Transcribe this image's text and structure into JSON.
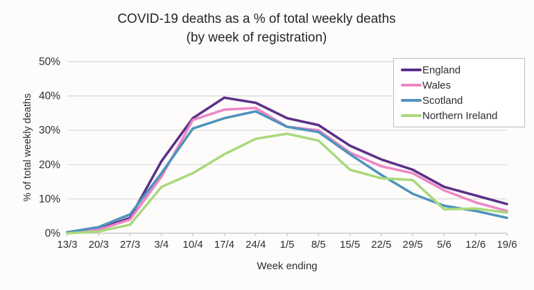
{
  "chart_data": {
    "type": "line",
    "title": "COVID-19 deaths as a % of total weekly deaths",
    "subtitle": "(by week of registration)",
    "xlabel": "Week ending",
    "ylabel": "% of total weekly deaths",
    "ylim": [
      0,
      50
    ],
    "ytick_labels": [
      "0%",
      "10%",
      "20%",
      "30%",
      "40%",
      "50%"
    ],
    "grid": true,
    "legend_position": "top-right",
    "categories": [
      "13/3",
      "20/3",
      "27/3",
      "3/4",
      "10/4",
      "17/4",
      "24/4",
      "1/5",
      "8/5",
      "15/5",
      "22/5",
      "29/5",
      "5/6",
      "12/6",
      "19/6"
    ],
    "series": [
      {
        "name": "England",
        "color": "#5b3089",
        "values": [
          0.3,
          1.2,
          4.5,
          21.0,
          33.5,
          39.5,
          38.0,
          33.5,
          31.5,
          25.5,
          21.5,
          18.5,
          13.5,
          11.0,
          8.5
        ]
      },
      {
        "name": "Wales",
        "color": "#ec87c5",
        "values": [
          0.2,
          1.0,
          4.0,
          16.5,
          33.0,
          36.0,
          36.5,
          31.0,
          30.0,
          23.5,
          19.5,
          17.5,
          12.5,
          9.0,
          6.5
        ]
      },
      {
        "name": "Scotland",
        "color": "#4f93bb",
        "values": [
          0.3,
          1.8,
          5.5,
          17.5,
          30.5,
          33.5,
          35.5,
          31.0,
          29.5,
          23.0,
          17.0,
          11.5,
          8.0,
          6.5,
          4.5
        ]
      },
      {
        "name": "Northern Ireland",
        "color": "#a9d97c",
        "values": [
          0.0,
          0.5,
          2.5,
          13.5,
          17.5,
          23.0,
          27.5,
          29.0,
          27.0,
          18.5,
          16.0,
          15.5,
          7.0,
          7.2,
          6.0
        ]
      }
    ]
  },
  "style": {
    "gridline_color": "#d8d8d8",
    "axis_color": "#c0c0c0",
    "tick_text_color": "#2e2e2e"
  }
}
